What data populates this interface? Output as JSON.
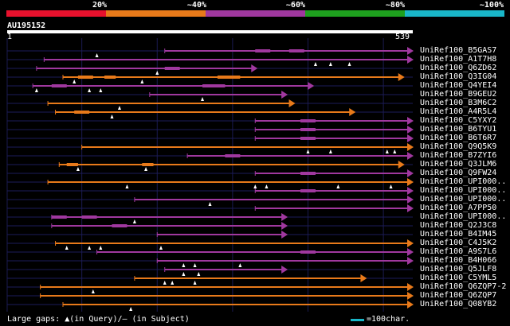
{
  "legend": {
    "colors": [
      "#e8112d",
      "#e87a1a",
      "#a0389f",
      "#1ea01e",
      "#19b6c8"
    ],
    "labels": [
      "20%",
      "~40%",
      "~60%",
      "~80%",
      "~100%"
    ]
  },
  "query": {
    "name": "AU195152",
    "start": "1",
    "end": "539",
    "length": 539
  },
  "footer": {
    "text": "Large gaps: ▲(in Query)/– (in Subject)",
    "scale_label": "=100char."
  },
  "hits": [
    {
      "label": "UniRef100_B5GAS7",
      "color": "purple",
      "start": 210,
      "end": 539,
      "marks": [
        120
      ],
      "dashes": [
        [
          330,
          350
        ],
        [
          375,
          395
        ]
      ]
    },
    {
      "label": "UniRef100_A1T7H8",
      "color": "purple",
      "start": 50,
      "end": 539,
      "marks": [
        410,
        430,
        455
      ],
      "dashes": []
    },
    {
      "label": "UniRef100_Q6ZD62",
      "color": "purple",
      "start": 40,
      "end": 330,
      "marks": [
        200
      ],
      "dashes": [
        [
          210,
          230
        ]
      ]
    },
    {
      "label": "UniRef100_Q3IG04",
      "color": "orange",
      "start": 75,
      "end": 525,
      "marks": [
        90,
        180
      ],
      "dashes": [
        [
          95,
          115
        ],
        [
          130,
          145
        ],
        [
          280,
          310
        ]
      ]
    },
    {
      "label": "UniRef100_Q4YEI4",
      "color": "purple",
      "start": 35,
      "end": 405,
      "marks": [
        40,
        110,
        125
      ],
      "dashes": [
        [
          60,
          80
        ],
        [
          260,
          290
        ]
      ]
    },
    {
      "label": "UniRef100_B9GEU2",
      "color": "purple",
      "start": 190,
      "end": 370,
      "marks": [
        260
      ],
      "dashes": []
    },
    {
      "label": "UniRef100_B3M6C2",
      "color": "orange",
      "start": 55,
      "end": 380,
      "marks": [
        150
      ],
      "dashes": []
    },
    {
      "label": "UniRef100_A4R5L4",
      "color": "orange",
      "start": 65,
      "end": 460,
      "marks": [
        140
      ],
      "dashes": [
        [
          90,
          110
        ]
      ]
    },
    {
      "label": "UniRef100_C5YXY2",
      "color": "purple",
      "start": 330,
      "end": 539,
      "marks": [],
      "dashes": [
        [
          390,
          410
        ]
      ]
    },
    {
      "label": "UniRef100_B6TYU1",
      "color": "purple",
      "start": 330,
      "end": 539,
      "marks": [],
      "dashes": [
        [
          390,
          410
        ]
      ]
    },
    {
      "label": "UniRef100_B6T6R7",
      "color": "purple",
      "start": 330,
      "end": 539,
      "marks": [],
      "dashes": [
        [
          390,
          410
        ]
      ]
    },
    {
      "label": "UniRef100_Q9Q5K9",
      "color": "orange",
      "start": 100,
      "end": 539,
      "marks": [
        400,
        430,
        505,
        515
      ],
      "dashes": []
    },
    {
      "label": "UniRef100_B7ZYI6",
      "color": "purple",
      "start": 240,
      "end": 539,
      "marks": [],
      "dashes": [
        [
          290,
          310
        ]
      ]
    },
    {
      "label": "UniRef100_Q3JLM6",
      "color": "orange",
      "start": 70,
      "end": 525,
      "marks": [
        95,
        185
      ],
      "dashes": [
        [
          80,
          95
        ],
        [
          180,
          195
        ]
      ]
    },
    {
      "label": "UniRef100_Q9FW24",
      "color": "purple",
      "start": 330,
      "end": 539,
      "marks": [],
      "dashes": [
        [
          390,
          410
        ]
      ]
    },
    {
      "label": "UniRef100_UPI000..",
      "color": "orange",
      "start": 55,
      "end": 539,
      "marks": [
        160,
        330,
        345,
        440,
        510
      ],
      "dashes": []
    },
    {
      "label": "UniRef100_UPI000..",
      "color": "purple",
      "start": 330,
      "end": 539,
      "marks": [],
      "dashes": [
        [
          390,
          410
        ]
      ]
    },
    {
      "label": "UniRef100_UPI000..",
      "color": "purple",
      "start": 170,
      "end": 539,
      "marks": [
        270
      ],
      "dashes": []
    },
    {
      "label": "UniRef100_A7PP50",
      "color": "purple",
      "start": 330,
      "end": 539,
      "marks": [],
      "dashes": []
    },
    {
      "label": "UniRef100_UPI000..",
      "color": "purple",
      "start": 60,
      "end": 370,
      "marks": [
        170
      ],
      "dashes": [
        [
          60,
          80
        ],
        [
          100,
          120
        ]
      ]
    },
    {
      "label": "UniRef100_Q2J3C8",
      "color": "purple",
      "start": 60,
      "end": 370,
      "marks": [],
      "dashes": [
        [
          140,
          160
        ]
      ]
    },
    {
      "label": "UniRef100_B4IM45",
      "color": "purple",
      "start": 200,
      "end": 370,
      "marks": [],
      "dashes": []
    },
    {
      "label": "UniRef100_C4J5K2",
      "color": "orange",
      "start": 65,
      "end": 539,
      "marks": [
        80,
        110,
        125,
        205
      ],
      "dashes": []
    },
    {
      "label": "UniRef100_A9S7L6",
      "color": "purple",
      "start": 120,
      "end": 539,
      "marks": [],
      "dashes": [
        [
          390,
          410
        ]
      ]
    },
    {
      "label": "UniRef100_B4H066",
      "color": "purple",
      "start": 200,
      "end": 539,
      "marks": [
        235,
        250,
        310
      ],
      "dashes": []
    },
    {
      "label": "UniRef100_Q5JLF8",
      "color": "purple",
      "start": 210,
      "end": 370,
      "marks": [
        235,
        255
      ],
      "dashes": []
    },
    {
      "label": "UniRef100_C5YML5",
      "color": "orange",
      "start": 170,
      "end": 475,
      "marks": [
        210,
        220,
        250
      ],
      "dashes": []
    },
    {
      "label": "UniRef100_Q6ZQP7-2",
      "color": "orange",
      "start": 45,
      "end": 539,
      "marks": [
        115
      ],
      "dashes": []
    },
    {
      "label": "UniRef100_Q6ZQP7",
      "color": "orange",
      "start": 45,
      "end": 539,
      "marks": [],
      "dashes": []
    },
    {
      "label": "UniRef100_Q08YB2",
      "color": "orange",
      "start": 75,
      "end": 540,
      "marks": [
        165
      ],
      "dashes": []
    }
  ]
}
